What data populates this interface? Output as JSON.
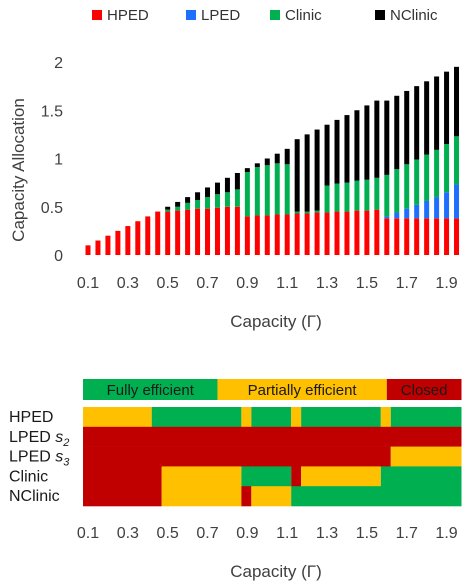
{
  "colors": {
    "hped": "#ff0000",
    "lped": "#1f6fff",
    "clinic": "#00b050",
    "nclinic": "#000000",
    "fully": "#00b050",
    "partial": "#ffc000",
    "closed": "#c00000"
  },
  "chart_data": [
    {
      "type": "bar",
      "stacked": true,
      "xlabel": "Capacity (Γ)",
      "ylabel": "Capacity Allocation",
      "ylim": [
        0,
        2
      ],
      "yticks": [
        "0",
        "0.5",
        "1",
        "1.5",
        "2"
      ],
      "xtick_labels": [
        "0.1",
        "0.3",
        "0.5",
        "0.7",
        "0.9",
        "1.1",
        "1.3",
        "1.5",
        "1.7",
        "1.9"
      ],
      "xtick_values": [
        0.1,
        0.3,
        0.5,
        0.7,
        0.9,
        1.1,
        1.3,
        1.5,
        1.7,
        1.9
      ],
      "legend_position": "top",
      "grid": false,
      "x": [
        0.1,
        0.15,
        0.2,
        0.25,
        0.3,
        0.35,
        0.4,
        0.45,
        0.5,
        0.55,
        0.6,
        0.65,
        0.7,
        0.75,
        0.8,
        0.85,
        0.9,
        0.95,
        1.0,
        1.05,
        1.1,
        1.15,
        1.2,
        1.25,
        1.3,
        1.35,
        1.4,
        1.45,
        1.5,
        1.55,
        1.6,
        1.65,
        1.7,
        1.75,
        1.8,
        1.85,
        1.9,
        1.95
      ],
      "series": [
        {
          "name": "HPED",
          "color_key": "hped",
          "values": [
            0.1,
            0.15,
            0.2,
            0.25,
            0.3,
            0.35,
            0.4,
            0.45,
            0.45,
            0.46,
            0.47,
            0.48,
            0.48,
            0.49,
            0.5,
            0.5,
            0.4,
            0.41,
            0.41,
            0.42,
            0.42,
            0.43,
            0.43,
            0.44,
            0.44,
            0.45,
            0.45,
            0.46,
            0.46,
            0.47,
            0.38,
            0.38,
            0.38,
            0.38,
            0.38,
            0.38,
            0.38,
            0.38
          ]
        },
        {
          "name": "LPED",
          "color_key": "lped",
          "values": [
            0,
            0,
            0,
            0,
            0,
            0,
            0,
            0,
            0,
            0,
            0,
            0,
            0,
            0,
            0,
            0,
            0,
            0,
            0,
            0,
            0,
            0,
            0,
            0,
            0,
            0,
            0,
            0,
            0,
            0,
            0.02,
            0.06,
            0.1,
            0.14,
            0.18,
            0.22,
            0.27,
            0.35
          ]
        },
        {
          "name": "Clinic",
          "color_key": "clinic",
          "values": [
            0,
            0,
            0,
            0,
            0,
            0,
            0,
            0,
            0.02,
            0.04,
            0.07,
            0.09,
            0.12,
            0.14,
            0.15,
            0.18,
            0.46,
            0.5,
            0.52,
            0.53,
            0.52,
            0.02,
            0.02,
            0.02,
            0.28,
            0.29,
            0.3,
            0.31,
            0.32,
            0.33,
            0.43,
            0.45,
            0.46,
            0.47,
            0.48,
            0.49,
            0.5,
            0.5
          ]
        },
        {
          "name": "NClinic",
          "color_key": "nclinic",
          "values": [
            0,
            0,
            0,
            0,
            0,
            0,
            0,
            0,
            0.03,
            0.05,
            0.06,
            0.08,
            0.1,
            0.12,
            0.15,
            0.17,
            0.04,
            0.04,
            0.07,
            0.1,
            0.16,
            0.75,
            0.8,
            0.84,
            0.63,
            0.66,
            0.7,
            0.73,
            0.77,
            0.8,
            0.77,
            0.76,
            0.76,
            0.76,
            0.76,
            0.76,
            0.75,
            0.72
          ]
        }
      ]
    },
    {
      "type": "heatmap",
      "xlabel": "Capacity (Γ)",
      "xrange": [
        0.075,
        1.975
      ],
      "xtick_labels": [
        "0.1",
        "0.3",
        "0.5",
        "0.7",
        "0.9",
        "1.1",
        "1.3",
        "1.5",
        "1.7",
        "1.9"
      ],
      "xtick_values": [
        0.1,
        0.3,
        0.5,
        0.7,
        0.9,
        1.1,
        1.3,
        1.5,
        1.7,
        1.9
      ],
      "legend": [
        {
          "label": "Fully efficient",
          "color_key": "fully",
          "from": 0.075,
          "to": 0.75
        },
        {
          "label": "Partially efficient",
          "color_key": "partial",
          "from": 0.75,
          "to": 1.6
        },
        {
          "label": "Closed",
          "color_key": "closed",
          "from": 1.6,
          "to": 1.975
        }
      ],
      "rows": [
        {
          "label": "HPED",
          "subscript": "",
          "segments": [
            {
              "from": 0.075,
              "to": 0.42,
              "state": "partial"
            },
            {
              "from": 0.42,
              "to": 0.87,
              "state": "fully"
            },
            {
              "from": 0.87,
              "to": 0.92,
              "state": "partial"
            },
            {
              "from": 0.92,
              "to": 1.12,
              "state": "fully"
            },
            {
              "from": 1.12,
              "to": 1.17,
              "state": "partial"
            },
            {
              "from": 1.17,
              "to": 1.57,
              "state": "fully"
            },
            {
              "from": 1.57,
              "to": 1.62,
              "state": "partial"
            },
            {
              "from": 1.62,
              "to": 1.975,
              "state": "fully"
            }
          ]
        },
        {
          "label": "LPED ",
          "subscript_base": "s",
          "subscript": "2",
          "segments": [
            {
              "from": 0.075,
              "to": 1.975,
              "state": "closed"
            }
          ]
        },
        {
          "label": "LPED ",
          "subscript_base": "s",
          "subscript": "3",
          "segments": [
            {
              "from": 0.075,
              "to": 1.62,
              "state": "closed"
            },
            {
              "from": 1.62,
              "to": 1.975,
              "state": "partial"
            }
          ]
        },
        {
          "label": "Clinic",
          "subscript": "",
          "segments": [
            {
              "from": 0.075,
              "to": 0.47,
              "state": "closed"
            },
            {
              "from": 0.47,
              "to": 0.87,
              "state": "partial"
            },
            {
              "from": 0.87,
              "to": 1.12,
              "state": "fully"
            },
            {
              "from": 1.12,
              "to": 1.17,
              "state": "closed"
            },
            {
              "from": 1.17,
              "to": 1.57,
              "state": "partial"
            },
            {
              "from": 1.57,
              "to": 1.975,
              "state": "fully"
            }
          ]
        },
        {
          "label": "NClinic",
          "subscript": "",
          "segments": [
            {
              "from": 0.075,
              "to": 0.47,
              "state": "closed"
            },
            {
              "from": 0.47,
              "to": 0.87,
              "state": "partial"
            },
            {
              "from": 0.87,
              "to": 0.92,
              "state": "closed"
            },
            {
              "from": 0.92,
              "to": 1.12,
              "state": "partial"
            },
            {
              "from": 1.12,
              "to": 1.975,
              "state": "fully"
            }
          ]
        }
      ]
    }
  ]
}
